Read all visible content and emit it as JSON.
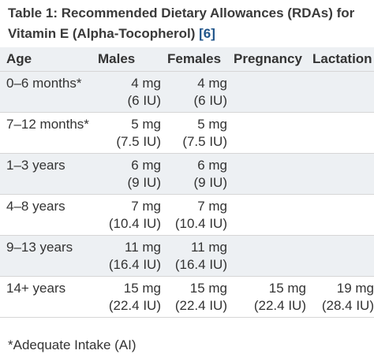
{
  "caption": {
    "text": "Table 1: Recommended Dietary Allowances (RDAs) for Vitamin E (Alpha-Tocopherol) ",
    "ref": "[6]"
  },
  "table": {
    "headers": [
      "Age",
      "Males",
      "Females",
      "Pregnancy",
      "Lactation"
    ],
    "rows": [
      {
        "age": "0–6 months*",
        "males": [
          "4 mg",
          "(6 IU)"
        ],
        "females": [
          "4 mg",
          "(6 IU)"
        ],
        "pregnancy": [
          "",
          ""
        ],
        "lactation": [
          "",
          ""
        ]
      },
      {
        "age": "7–12 months*",
        "males": [
          "5 mg",
          "(7.5 IU)"
        ],
        "females": [
          "5 mg",
          "(7.5 IU)"
        ],
        "pregnancy": [
          "",
          ""
        ],
        "lactation": [
          "",
          ""
        ]
      },
      {
        "age": "1–3 years",
        "males": [
          "6 mg",
          "(9 IU)"
        ],
        "females": [
          "6 mg",
          "(9 IU)"
        ],
        "pregnancy": [
          "",
          ""
        ],
        "lactation": [
          "",
          ""
        ]
      },
      {
        "age": "4–8 years",
        "males": [
          "7 mg",
          "(10.4 IU)"
        ],
        "females": [
          "7 mg",
          "(10.4 IU)"
        ],
        "pregnancy": [
          "",
          ""
        ],
        "lactation": [
          "",
          ""
        ]
      },
      {
        "age": "9–13 years",
        "males": [
          "11 mg",
          "(16.4 IU)"
        ],
        "females": [
          "11 mg",
          "(16.4 IU)"
        ],
        "pregnancy": [
          "",
          ""
        ],
        "lactation": [
          "",
          ""
        ]
      },
      {
        "age": "14+ years",
        "males": [
          "15 mg",
          "(22.4 IU)"
        ],
        "females": [
          "15 mg",
          "(22.4 IU)"
        ],
        "pregnancy": [
          "15 mg",
          "(22.4 IU)"
        ],
        "lactation": [
          "19 mg",
          "(28.4 IU)"
        ]
      }
    ]
  },
  "footnote": "*Adequate Intake (AI)",
  "colors": {
    "header_bg": "#edf0f3",
    "text": "#333333",
    "link": "#20558a"
  }
}
